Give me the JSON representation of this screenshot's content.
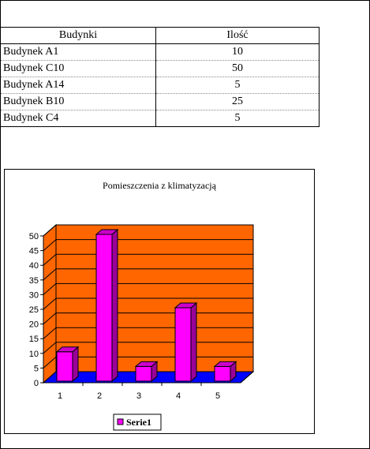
{
  "table": {
    "headers": [
      "Budynki",
      "Ilość"
    ],
    "rows": [
      [
        "Budynek A1",
        "10"
      ],
      [
        "Budynek C10",
        "50"
      ],
      [
        "Budynek A14",
        "5"
      ],
      [
        "Budynek B10",
        "25"
      ],
      [
        "Budynek C4",
        "5"
      ]
    ]
  },
  "colors": {
    "wall": "#ff6600",
    "floor": "#0000ff",
    "bar": "#ff00ff",
    "bar_side": "#990099",
    "bar_top": "#cc00cc"
  },
  "chart_data": {
    "type": "bar",
    "title": "Pomieszczenia z klimatyzacją",
    "categories": [
      "1",
      "2",
      "3",
      "4",
      "5"
    ],
    "series": [
      {
        "name": "Serie1",
        "values": [
          10,
          50,
          5,
          25,
          5
        ]
      }
    ],
    "ylim": [
      0,
      50
    ],
    "yticks": [
      "0",
      "5",
      "10",
      "15",
      "20",
      "25",
      "30",
      "35",
      "40",
      "45",
      "50"
    ],
    "grid": true,
    "legend": "bottom"
  }
}
